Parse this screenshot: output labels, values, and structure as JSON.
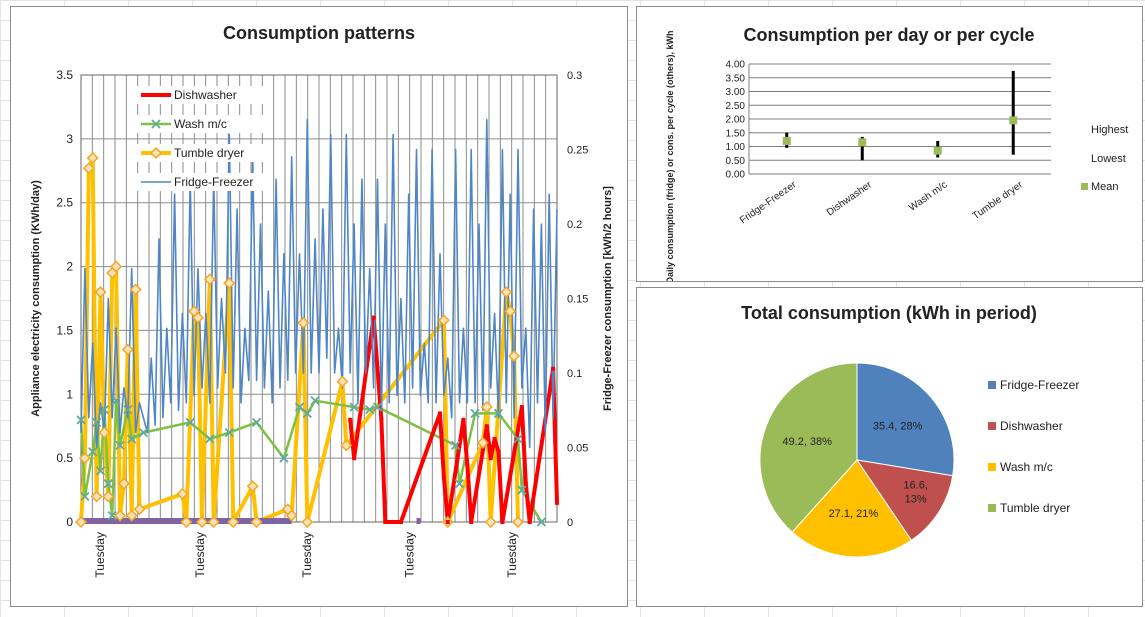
{
  "colors": {
    "dishwasher": "#ff0000",
    "wash": "#7dc142",
    "dryer": "#ffc000",
    "dryer_marker": "#f5a623",
    "fridge": "#4f86c6",
    "purple": "#8064a2",
    "pie_fridge": "#4f81bd",
    "pie_dish": "#c0504d",
    "pie_wash": "#ffc000",
    "pie_dryer": "#9bbb59",
    "mean": "#9bbb59",
    "grid": "#8c8c8c"
  },
  "chart_data": [
    {
      "type": "line",
      "title": "Consumption patterns",
      "ylabel": "Appliance electricity consumption (KWh/day)",
      "y2label": "Fridge-Freezer consumption [kWh/2 hours]",
      "ylim": [
        0,
        3.5
      ],
      "y2lim": [
        0,
        0.3
      ],
      "yticks": [
        "0",
        "0.5",
        "1",
        "1.5",
        "2",
        "2.5",
        "3",
        "3.5"
      ],
      "y2ticks": [
        "0",
        "0.05",
        "0.1",
        "0.15",
        "0.2",
        "0.25",
        "0.3"
      ],
      "xticklabels": [
        "Tuesday",
        "Tuesday",
        "Tuesday",
        "Tuesday",
        "Tuesday"
      ],
      "grid": true,
      "legend_position": "top-left",
      "legend": [
        "Dishwasher",
        "Wash m/c",
        "Tumble dryer",
        "Fridge-Freezer"
      ],
      "series": [
        {
          "name": "Dishwasher",
          "key": "dishwasher",
          "axis": "left",
          "points": [
            [
              69,
              0.8
            ],
            [
              70,
              0.5
            ],
            [
              75,
              1.6
            ],
            [
              76,
              1.2
            ],
            [
              77,
              0.8
            ],
            [
              78,
              0
            ],
            [
              82,
              0
            ],
            [
              92,
              0.85
            ],
            [
              93,
              0.35
            ],
            [
              94,
              0
            ],
            [
              98,
              0.8
            ],
            [
              99,
              0.45
            ],
            [
              100,
              0
            ],
            [
              104,
              0.75
            ],
            [
              105,
              0.5
            ],
            [
              106,
              0.65
            ],
            [
              107,
              0.55
            ],
            [
              108,
              0
            ],
            [
              113,
              0.9
            ],
            [
              114,
              0.3
            ],
            [
              115,
              0
            ],
            [
              121,
              1.2
            ],
            [
              122,
              0.15
            ]
          ]
        },
        {
          "name": "Wash m/c",
          "key": "wash",
          "axis": "left",
          "points": [
            [
              0,
              0.8
            ],
            [
              1,
              0.2
            ],
            [
              3,
              0.55
            ],
            [
              4,
              0.78
            ],
            [
              5,
              0.4
            ],
            [
              6,
              0.88
            ],
            [
              7,
              0.3
            ],
            [
              8,
              0.05
            ],
            [
              9,
              0.95
            ],
            [
              10,
              0.6
            ],
            [
              12,
              0.88
            ],
            [
              13,
              0.65
            ],
            [
              16,
              0.7
            ],
            [
              28,
              0.78
            ],
            [
              33,
              0.65
            ],
            [
              38,
              0.7
            ],
            [
              45,
              0.78
            ],
            [
              52,
              0.5
            ],
            [
              56,
              0.9
            ],
            [
              58,
              0.85
            ],
            [
              60,
              0.95
            ],
            [
              70,
              0.9
            ],
            [
              74,
              0.88
            ],
            [
              76,
              0.9
            ],
            [
              96,
              0.6
            ],
            [
              97,
              0.3
            ],
            [
              101,
              0.85
            ],
            [
              107,
              0.85
            ],
            [
              112,
              0.65
            ],
            [
              113,
              0.25
            ],
            [
              118,
              0
            ]
          ]
        },
        {
          "name": "Tumble dryer",
          "key": "dryer",
          "axis": "left",
          "points": [
            [
              0,
              0
            ],
            [
              1,
              0.5
            ],
            [
              2,
              2.77
            ],
            [
              3,
              2.85
            ],
            [
              4,
              0.2
            ],
            [
              5,
              1.8
            ],
            [
              6,
              0.7
            ],
            [
              7,
              0.2
            ],
            [
              8,
              1.95
            ],
            [
              9,
              2
            ],
            [
              10,
              0.05
            ],
            [
              11,
              0.3
            ],
            [
              12,
              1.35
            ],
            [
              13,
              0.05
            ],
            [
              14,
              1.82
            ],
            [
              15,
              0.1
            ],
            [
              26,
              0.22
            ],
            [
              27,
              0
            ],
            [
              29,
              1.65
            ],
            [
              30,
              1.6
            ],
            [
              31,
              0
            ],
            [
              33,
              1.9
            ],
            [
              34,
              0
            ],
            [
              38,
              1.87
            ],
            [
              39,
              0
            ],
            [
              44,
              0.28
            ],
            [
              45,
              0
            ],
            [
              53,
              0.1
            ],
            [
              54,
              0.05
            ],
            [
              57,
              1.56
            ],
            [
              58,
              0
            ],
            [
              67,
              1.1
            ],
            [
              68,
              0.6
            ],
            [
              93,
              1.58
            ],
            [
              94,
              0
            ],
            [
              103,
              0.62
            ],
            [
              104,
              0.9
            ],
            [
              105,
              0
            ],
            [
              109,
              1.8
            ],
            [
              110,
              1.65
            ],
            [
              111,
              1.3
            ],
            [
              112,
              0
            ]
          ]
        },
        {
          "name": "Fridge-Freezer",
          "key": "fridge",
          "axis": "right",
          "points": [
            [
              0,
              0.06
            ],
            [
              1,
              0.17
            ],
            [
              2,
              0.07
            ],
            [
              3,
              0.12
            ],
            [
              4,
              0.05
            ],
            [
              5,
              0.08
            ],
            [
              6,
              0.06
            ],
            [
              7,
              0.15
            ],
            [
              8,
              0.07
            ],
            [
              9,
              0.13
            ],
            [
              10,
              0.06
            ],
            [
              11,
              0.09
            ],
            [
              12,
              0.07
            ],
            [
              13,
              0.17
            ],
            [
              14,
              0.06
            ],
            [
              15,
              0.08
            ],
            [
              16,
              0.07
            ],
            [
              17,
              0.06
            ],
            [
              18,
              0.11
            ],
            [
              19,
              0.065
            ],
            [
              20,
              0.19
            ],
            [
              21,
              0.07
            ],
            [
              22,
              0.13
            ],
            [
              23,
              0.08
            ],
            [
              24,
              0.22
            ],
            [
              25,
              0.075
            ],
            [
              26,
              0.14
            ],
            [
              27,
              0.08
            ],
            [
              28,
              0.23
            ],
            [
              29,
              0.085
            ],
            [
              30,
              0.17
            ],
            [
              31,
              0.09
            ],
            [
              32,
              0.14
            ],
            [
              33,
              0.08
            ],
            [
              34,
              0.23
            ],
            [
              35,
              0.09
            ],
            [
              36,
              0.15
            ],
            [
              37,
              0.1
            ],
            [
              38,
              0.26
            ],
            [
              39,
              0.09
            ],
            [
              40,
              0.21
            ],
            [
              41,
              0.08
            ],
            [
              42,
              0.13
            ],
            [
              43,
              0.095
            ],
            [
              44,
              0.245
            ],
            [
              45,
              0.095
            ],
            [
              46,
              0.2
            ],
            [
              47,
              0.09
            ],
            [
              48,
              0.155
            ],
            [
              49,
              0.08
            ],
            [
              50,
              0.23
            ],
            [
              51,
              0.09
            ],
            [
              52,
              0.18
            ],
            [
              53,
              0.095
            ],
            [
              54,
              0.245
            ],
            [
              55,
              0.1
            ],
            [
              56,
              0.18
            ],
            [
              57,
              0.1
            ],
            [
              58,
              0.27
            ],
            [
              59,
              0.1
            ],
            [
              60,
              0.19
            ],
            [
              61,
              0.1
            ],
            [
              62,
              0.21
            ],
            [
              63,
              0.11
            ],
            [
              64,
              0.26
            ],
            [
              65,
              0.1
            ],
            [
              66,
              0.13
            ],
            [
              67,
              0.09
            ],
            [
              68,
              0.26
            ],
            [
              69,
              0.1
            ],
            [
              70,
              0.2
            ],
            [
              71,
              0.08
            ],
            [
              72,
              0.23
            ],
            [
              73,
              0.1
            ],
            [
              74,
              0.17
            ],
            [
              75,
              0.09
            ],
            [
              76,
              0.23
            ],
            [
              77,
              0.075
            ],
            [
              78,
              0.2
            ],
            [
              79,
              0.08
            ],
            [
              80,
              0.26
            ],
            [
              81,
              0.085
            ],
            [
              82,
              0.15
            ],
            [
              83,
              0.08
            ],
            [
              84,
              0.22
            ],
            [
              85,
              0.09
            ],
            [
              86,
              0.25
            ],
            [
              87,
              0.085
            ],
            [
              88,
              0.12
            ],
            [
              89,
              0.08
            ],
            [
              90,
              0.25
            ],
            [
              91,
              0.08
            ],
            [
              92,
              0.18
            ],
            [
              93,
              0.085
            ],
            [
              94,
              0.11
            ],
            [
              95,
              0.07
            ],
            [
              96,
              0.25
            ],
            [
              97,
              0.08
            ],
            [
              98,
              0.13
            ],
            [
              99,
              0.08
            ],
            [
              100,
              0.25
            ],
            [
              101,
              0.08
            ],
            [
              102,
              0.2
            ],
            [
              103,
              0.075
            ],
            [
              104,
              0.27
            ],
            [
              105,
              0.09
            ],
            [
              106,
              0.14
            ],
            [
              107,
              0.07
            ],
            [
              108,
              0.25
            ],
            [
              109,
              0.08
            ],
            [
              110,
              0.22
            ],
            [
              111,
              0.07
            ],
            [
              112,
              0.25
            ],
            [
              113,
              0.09
            ],
            [
              114,
              0.13
            ],
            [
              115,
              0.05
            ],
            [
              116,
              0.21
            ],
            [
              117,
              0.08
            ],
            [
              118,
              0.2
            ],
            [
              119,
              0.06
            ],
            [
              120,
              0.22
            ],
            [
              121,
              0.07
            ],
            [
              122,
              0.21
            ]
          ]
        },
        {
          "name": "",
          "key": "purple",
          "axis": "left",
          "segments": [
            [
              0,
              54
            ],
            [
              86,
              87
            ]
          ]
        }
      ]
    },
    {
      "type": "range",
      "title": "Consumption per day or per cycle",
      "ylabel": "Daily consumption (fridge) or cons. per cycle (others), kWh",
      "ylim": [
        0,
        4
      ],
      "yticks": [
        "0.00",
        "0.50",
        "1.00",
        "1.50",
        "2.00",
        "2.50",
        "3.00",
        "3.50",
        "4.00"
      ],
      "categories": [
        "Fridge-Freezer",
        "Dishwasher",
        "Wash m/c",
        "Tumble dryer"
      ],
      "highest": [
        1.5,
        1.35,
        1.2,
        3.75
      ],
      "lowest": [
        0.95,
        0.5,
        0.6,
        0.7
      ],
      "mean": [
        1.2,
        1.15,
        0.85,
        1.95
      ],
      "legend": [
        "Highest",
        "Lowest",
        "Mean"
      ],
      "legend_position": "right"
    },
    {
      "type": "pie",
      "title": "Total consumption (kWh in period)",
      "categories": [
        "Fridge-Freezer",
        "Dishwasher",
        "Wash m/c",
        "Tumble dryer"
      ],
      "values": [
        35.4,
        16.6,
        27.1,
        49.2
      ],
      "labels": [
        "35.4, 28%",
        "16.6, 13%",
        "27.1, 21%",
        "49.2, 38%"
      ],
      "legend_position": "right"
    }
  ]
}
